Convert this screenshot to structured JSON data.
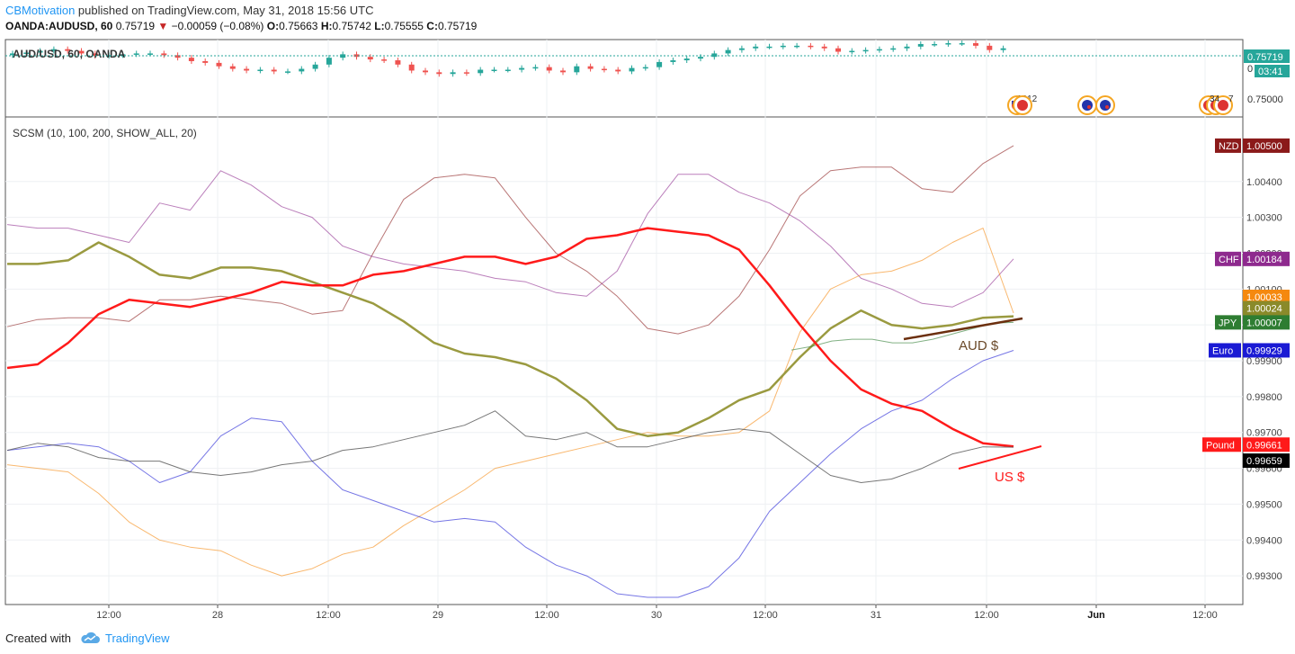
{
  "header": {
    "author": "CBMotivation",
    "published": " published on TradingView.com, May 31, 2018 15:56 UTC",
    "symbol": "OANDA:AUDUSD, 60",
    "last": "0.75719",
    "change": "−0.00059 (−0.08%)",
    "o_label": "O:",
    "o": "0.75663",
    "h_label": "H:",
    "h": "0.75742",
    "l_label": "L:",
    "l": "0.75555",
    "c_label": "C:",
    "c": "0.75719"
  },
  "colors": {
    "up": "#26a69a",
    "down": "#ef5350",
    "nzd": "#8b1a1a",
    "chf": "#8e2a8e",
    "cad": "#f5890f",
    "aud": "#9a9a40",
    "jpy": "#2e7d32",
    "eur": "#1a1ad4",
    "usd": "#ff1a1a",
    "gbp": "#000000"
  },
  "price_pane": {
    "legend": "AUD/USD, 60, OANDA",
    "price_label": "0.75719",
    "countdown": "03:41",
    "axis_ticks": [
      "0",
      "0.75000"
    ],
    "event_labels": [
      "1212",
      "34",
      "7"
    ]
  },
  "indicator_pane": {
    "legend": "SCSM (10, 100, 200, SHOW_ALL, 20)",
    "annotation_aud": "AUD $",
    "annotation_usd": "US $"
  },
  "footer": {
    "created_with": "Created with",
    "brand": "TradingView"
  },
  "chart_data": [
    {
      "type": "line",
      "title": "AUD/USD, 60, OANDA",
      "x_ticks": [
        "12:00",
        "28",
        "12:00",
        "29",
        "12:00",
        "30",
        "12:00",
        "31",
        "12:00",
        "Jun",
        "12:00"
      ],
      "ylim": [
        0.7496,
        0.7578
      ],
      "y_ticks": [
        0.75,
        0.7572
      ],
      "close_series": [
        0.7566,
        0.7567,
        0.7569,
        0.7571,
        0.7569,
        0.7566,
        0.7563,
        0.7564,
        0.7565,
        0.7566,
        0.7566,
        0.7564,
        0.7561,
        0.7557,
        0.7555,
        0.7551,
        0.7548,
        0.7546,
        0.7547,
        0.7545,
        0.7545,
        0.7548,
        0.7553,
        0.7561,
        0.7565,
        0.7562,
        0.7559,
        0.7558,
        0.7553,
        0.7546,
        0.7544,
        0.7542,
        0.7544,
        0.7543,
        0.7547,
        0.7547,
        0.7547,
        0.7549,
        0.755,
        0.7546,
        0.7544,
        0.7551,
        0.7548,
        0.7547,
        0.7545,
        0.7549,
        0.755,
        0.7556,
        0.7558,
        0.756,
        0.7562,
        0.7566,
        0.757,
        0.7572,
        0.7574,
        0.7574,
        0.7575,
        0.7575,
        0.7574,
        0.7572,
        0.7568,
        0.7569,
        0.757,
        0.7571,
        0.7572,
        0.7574,
        0.7577,
        0.7577,
        0.7578,
        0.7578,
        0.7575,
        0.757,
        0.7572
      ]
    },
    {
      "type": "line",
      "title": "SCSM (10, 100, 200, SHOW_ALL, 20)",
      "x_ticks": [
        "12:00",
        "28",
        "12:00",
        "29",
        "12:00",
        "30",
        "12:00",
        "31",
        "12:00",
        "Jun",
        "12:00"
      ],
      "ylim": [
        0.9922,
        1.0056
      ],
      "y_ticks": [
        0.993,
        0.994,
        0.995,
        0.996,
        0.997,
        0.998,
        0.999,
        1.0,
        1.001,
        1.002,
        1.003,
        1.004
      ],
      "series": [
        {
          "name": "NZD",
          "last": "1.00500",
          "values": [
            0.99995,
            1.00015,
            1.0002,
            1.0002,
            1.0001,
            1.0007,
            1.0007,
            1.0008,
            1.0007,
            1.0006,
            1.0003,
            1.0004,
            1.002,
            1.0035,
            1.0041,
            1.0042,
            1.0041,
            1.003,
            1.002,
            1.0015,
            1.0008,
            0.9999,
            0.99975,
            1.0,
            1.0008,
            1.0021,
            1.0036,
            1.0043,
            1.0044,
            1.0044,
            1.0038,
            1.0037,
            1.0045,
            1.005
          ]
        },
        {
          "name": "CHF",
          "last": "1.00184",
          "values": [
            1.0028,
            1.0027,
            1.0027,
            1.0025,
            1.0023,
            1.0034,
            1.0032,
            1.0043,
            1.0039,
            1.0033,
            1.003,
            1.0022,
            1.0019,
            1.0017,
            1.0016,
            1.0015,
            1.0013,
            1.0012,
            1.0009,
            1.0008,
            1.0015,
            1.0031,
            1.0042,
            1.0042,
            1.0037,
            1.0034,
            1.0029,
            1.0022,
            1.0013,
            1.001,
            1.0006,
            1.0005,
            1.0009,
            1.00184
          ]
        },
        {
          "name": "CAD",
          "last": "1.00033",
          "values": [
            0.9961,
            0.996,
            0.9959,
            0.9953,
            0.9945,
            0.994,
            0.9938,
            0.9937,
            0.9933,
            0.993,
            0.9932,
            0.9936,
            0.9938,
            0.9944,
            0.9949,
            0.9954,
            0.996,
            0.9962,
            0.9964,
            0.9966,
            0.9968,
            0.997,
            0.9969,
            0.9969,
            0.997,
            0.9976,
            0.9998,
            1.001,
            1.0014,
            1.0015,
            1.0018,
            1.0023,
            1.0027,
            1.00033
          ]
        },
        {
          "name": "AUD",
          "last": "1.00024",
          "values": [
            1.0017,
            1.0017,
            1.0018,
            1.0023,
            1.0019,
            1.0014,
            1.0013,
            1.0016,
            1.0016,
            1.0015,
            1.0012,
            1.0009,
            1.0006,
            1.0001,
            0.9995,
            0.9992,
            0.9991,
            0.9989,
            0.9985,
            0.9979,
            0.9971,
            0.9969,
            0.997,
            0.9974,
            0.9979,
            0.9982,
            0.9991,
            0.9999,
            1.0004,
            1.0,
            0.9999,
            1.0,
            1.0002,
            1.00024
          ]
        },
        {
          "name": "JPY",
          "last": "1.00007",
          "values": [
            0.9993,
            0.9994,
            0.99955,
            0.9996,
            0.9996,
            0.9995,
            0.9995,
            0.9996,
            0.99975,
            0.9999,
            1.00005,
            1.00007
          ]
        },
        {
          "name": "Euro",
          "last": "0.99929",
          "values": [
            0.9965,
            0.9966,
            0.9967,
            0.9966,
            0.9962,
            0.9956,
            0.9959,
            0.9969,
            0.9974,
            0.9973,
            0.9962,
            0.9954,
            0.9951,
            0.9948,
            0.9945,
            0.9946,
            0.9945,
            0.9938,
            0.9933,
            0.993,
            0.9925,
            0.9924,
            0.9924,
            0.9927,
            0.9935,
            0.9948,
            0.9956,
            0.9964,
            0.9971,
            0.9976,
            0.9979,
            0.9985,
            0.999,
            0.99929
          ]
        },
        {
          "name": "Pound",
          "last": "0.99661",
          "values": [
            0.9988,
            0.9989,
            0.9995,
            1.0003,
            1.0007,
            1.0006,
            1.0005,
            1.0007,
            1.0009,
            1.0012,
            1.0011,
            1.0011,
            1.0014,
            1.0015,
            1.0017,
            1.0019,
            1.0019,
            1.0017,
            1.0019,
            1.0024,
            1.0025,
            1.0027,
            1.0026,
            1.0025,
            1.0021,
            1.0011,
            1.0,
            0.999,
            0.9982,
            0.9978,
            0.9976,
            0.9971,
            0.9967,
            0.99661
          ]
        },
        {
          "name": "USD",
          "last": "0.99659",
          "values": [
            0.9965,
            0.9967,
            0.9966,
            0.9963,
            0.9962,
            0.9962,
            0.9959,
            0.9958,
            0.9959,
            0.9961,
            0.9962,
            0.9965,
            0.9966,
            0.9968,
            0.997,
            0.9972,
            0.9976,
            0.9969,
            0.9968,
            0.997,
            0.9966,
            0.9966,
            0.9968,
            0.997,
            0.9971,
            0.997,
            0.9964,
            0.9958,
            0.9956,
            0.9957,
            0.996,
            0.9964,
            0.9966,
            0.99659
          ]
        }
      ]
    }
  ]
}
